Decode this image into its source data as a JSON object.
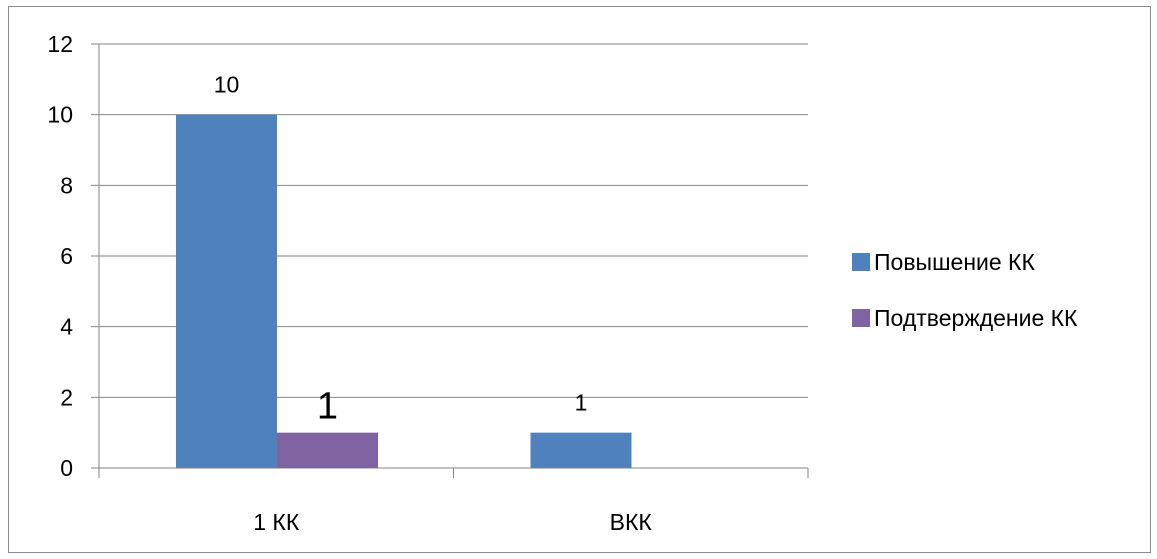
{
  "chart_data": {
    "type": "bar",
    "categories": [
      "1 КК",
      "ВКК"
    ],
    "series": [
      {
        "name": "Повышение КК",
        "values": [
          10,
          1
        ],
        "color": "#4F81BD",
        "data_labels": [
          "10",
          "1"
        ]
      },
      {
        "name": "Подтверждение КК",
        "values": [
          1,
          null
        ],
        "color": "#8064A2",
        "data_labels": [
          "1",
          null
        ]
      }
    ],
    "y_ticks": [
      "0",
      "2",
      "4",
      "6",
      "8",
      "10",
      "12"
    ],
    "ylim": [
      0,
      12
    ],
    "grid": true,
    "legend_position": "right"
  }
}
